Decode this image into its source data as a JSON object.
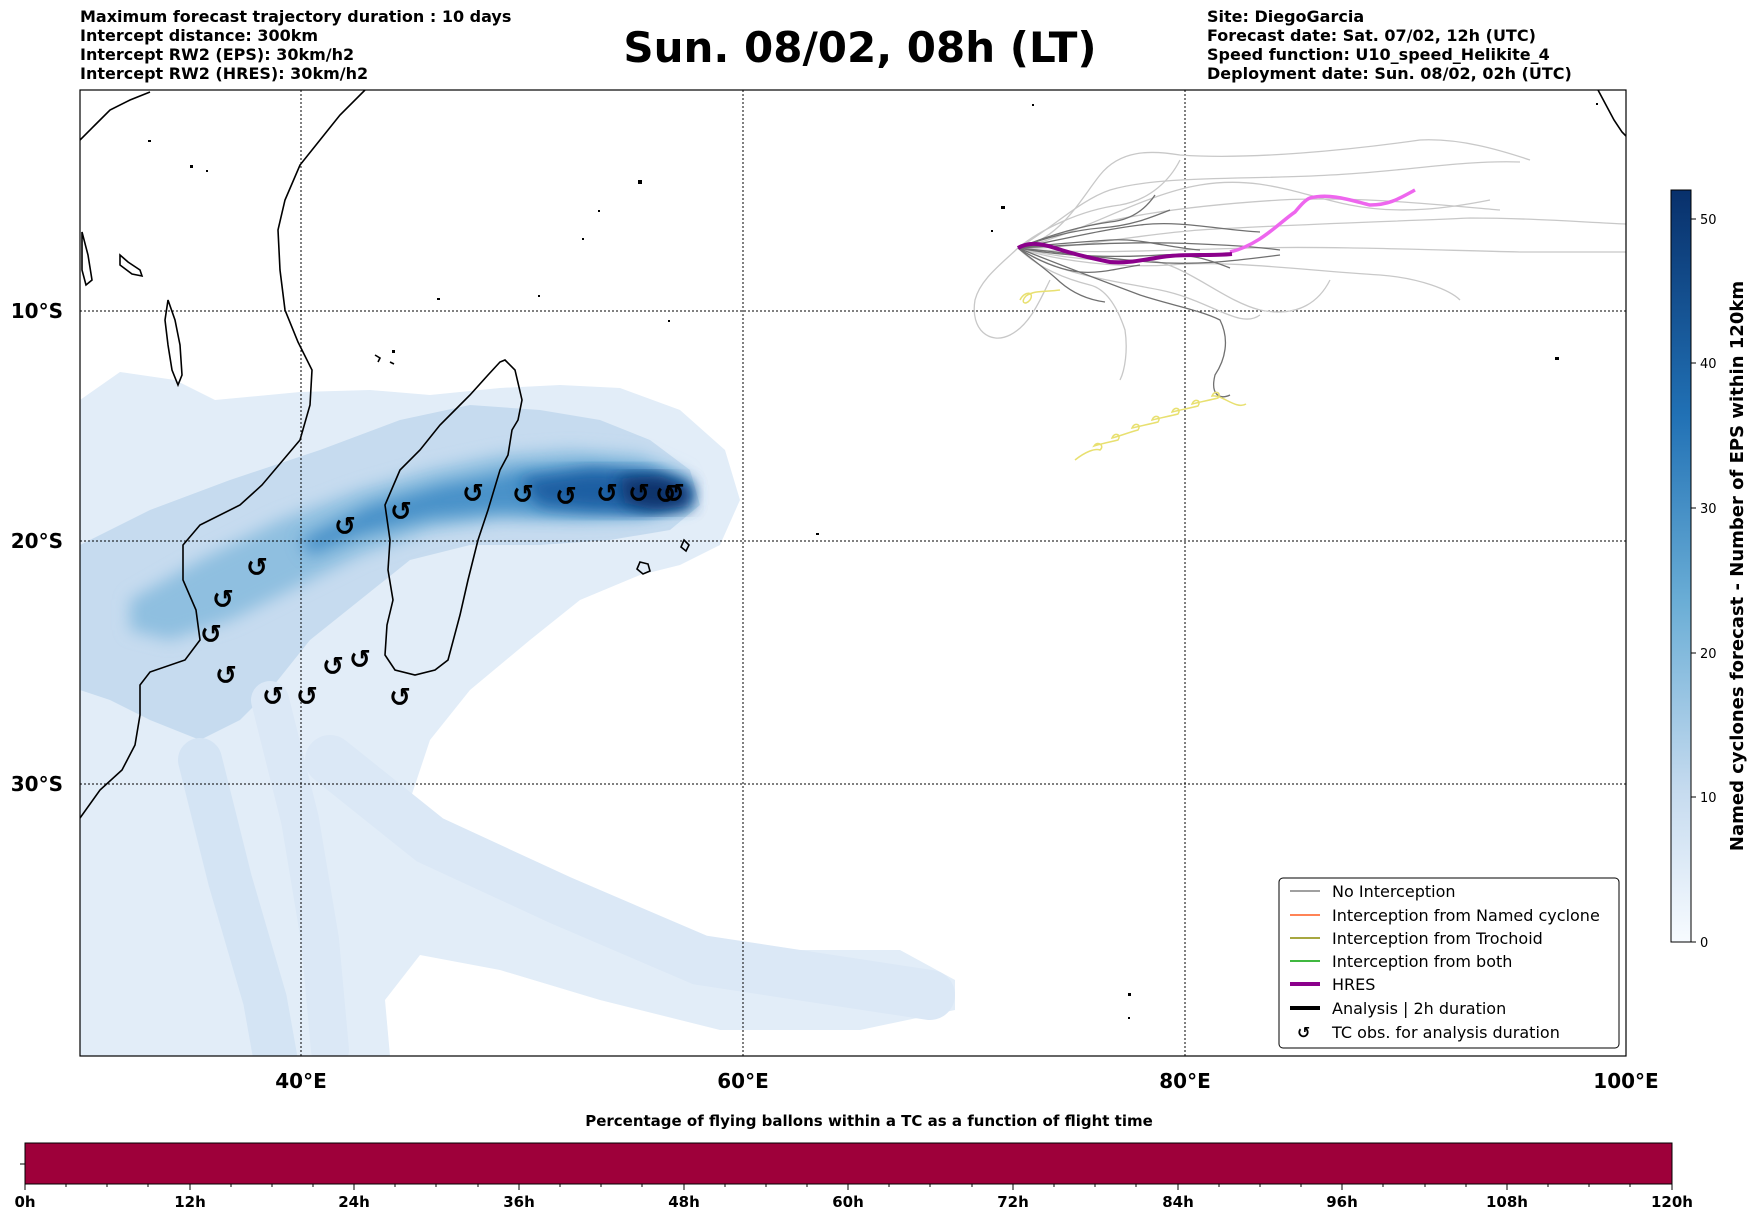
{
  "header": {
    "left": [
      "Maximum forecast trajectory duration : 10 days",
      "Intercept distance: 300km",
      "Intercept RW2 (EPS):  30km/h2",
      "Intercept RW2 (HRES): 30km/h2"
    ],
    "right": [
      "Site: DiegoGarcia",
      "Forecast date: Sat. 07/02, 12h (UTC)",
      "Speed function: U10_speed_Helikite_4",
      "Deployment date: Sun. 08/02, 02h (UTC)"
    ],
    "title": "Sun. 08/02, 08h (LT)"
  },
  "map": {
    "lon_ticks": [
      "40°E",
      "60°E",
      "80°E",
      "100°E"
    ],
    "lat_ticks": [
      "10°S",
      "20°S",
      "30°S"
    ],
    "colors": {
      "eps_light": "#c6dbef",
      "eps_mid": "#4292c6",
      "eps_dark": "#08306b",
      "hres": "#8b008b",
      "hres_late": "#ee66ee",
      "no_interception": "#707070",
      "analysis_tc": "#e8e070"
    }
  },
  "legend": {
    "items": [
      {
        "label": "No Interception",
        "color": "#808080"
      },
      {
        "label": "Interception from Named cyclone",
        "color": "#ff5a1f"
      },
      {
        "label": "Interception from Trochoid",
        "color": "#8a8a00"
      },
      {
        "label": "Interception from both",
        "color": "#00a000"
      },
      {
        "label": "HRES",
        "color": "#8b008b"
      },
      {
        "label": "Analysis | 2h duration",
        "color": "#000000"
      },
      {
        "label": "TC obs. for analysis duration",
        "color": "#000000"
      }
    ]
  },
  "colorbar_right": {
    "label": "Named cyclones forecast - Number of EPS within 120km",
    "ticks": [
      "0",
      "10",
      "20",
      "30",
      "40",
      "50"
    ],
    "range": [
      0,
      52
    ]
  },
  "colorbar_bottom": {
    "title": "Percentage of flying ballons within a TC as a function of flight time",
    "ticks": [
      "0h",
      "12h",
      "24h",
      "36h",
      "48h",
      "60h",
      "72h",
      "84h",
      "96h",
      "108h",
      "120h"
    ],
    "color": "#9e003a"
  },
  "tc_symbol": "↺"
}
